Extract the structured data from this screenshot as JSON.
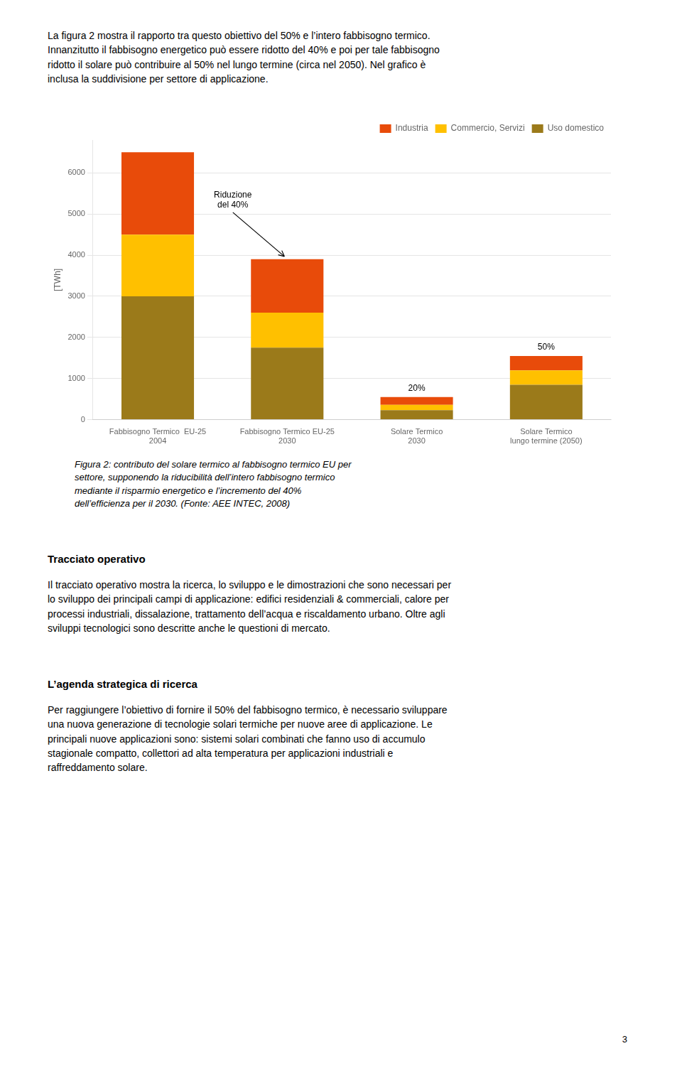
{
  "text_before": "La figura 2 mostra il rapporto tra questo obiettivo del 50% e l’intero fabbisogno termico.\nInnanzitutto il fabbisogno energetico può essere ridotto del 40% e poi per tale fabbisogno\nridotto il solare può contribuire al 50% nel lungo termine (circa nel 2050). Nel grafico è\ninclusa la suddivisione per settore di applicazione.",
  "chart_data": {
    "type": "bar",
    "stacked": true,
    "categories": [
      "Fabbisogno Termico  EU-25\n2004",
      "Fabbisogno Termico EU-25\n2030",
      "Solare Termico\n2030",
      "Solare Termico\nlungo termine (2050)"
    ],
    "series": [
      {
        "name": "Uso domestico",
        "color": "#9B7A1A",
        "values": [
          3000,
          1750,
          230,
          850
        ]
      },
      {
        "name": "Commercio, Servizi",
        "color": "#FFC000",
        "values": [
          1500,
          850,
          130,
          350
        ]
      },
      {
        "name": "Industria",
        "color": "#E84B0A",
        "values": [
          2000,
          1300,
          190,
          350
        ]
      }
    ],
    "ylabel": "[TWh]",
    "ylim": [
      0,
      6800
    ],
    "yticks": [
      0,
      1000,
      2000,
      3000,
      4000,
      5000,
      6000
    ],
    "grid": true,
    "legend": "upper right",
    "annotations": [
      {
        "text": "Riduzione\ndel 40%",
        "category": "Fabbisogno Termico EU-25\n2030",
        "arrow": true
      },
      {
        "text": "20%",
        "category": "Solare Termico\n2030",
        "arrow": false
      },
      {
        "text": "50%",
        "category": "Solare Termico\nlungo termine (2050)",
        "arrow": false
      }
    ],
    "caption": "Figura 2: contributo del solare termico al fabbisogno termico EU per\nsettore, supponendo la riducibilità dell’intero fabbisogno termico\nmediante il risparmio energetico e l’incremento del 40%\ndell’efficienza per il 2030. (Fonte: AEE INTEC, 2008)"
  },
  "sections": [
    {
      "heading": "Tracciato operativo",
      "text": "Il tracciato operativo mostra la ricerca, lo sviluppo e le dimostrazioni che sono necessari per\nlo sviluppo dei principali campi di applicazione: edifici residenziali & commerciali, calore per\nprocessi industriali, dissalazione, trattamento dell’acqua e riscaldamento urbano. Oltre agli\nsviluppi tecnologici sono descritte anche le questioni di mercato."
    },
    {
      "heading": "L’agenda strategica di ricerca",
      "text": "Per raggiungere l’obiettivo di fornire il 50% del fabbisogno termico, è necessario sviluppare\nuna nuova generazione di tecnologie solari termiche per nuove aree di applicazione. Le\nprincipali nuove applicazioni sono: sistemi solari combinati che fanno uso di accumulo\nstagionale compatto, collettori ad alta temperatura per applicazioni industriali e\nraffreddamento solare."
    }
  ],
  "page_number": "3"
}
